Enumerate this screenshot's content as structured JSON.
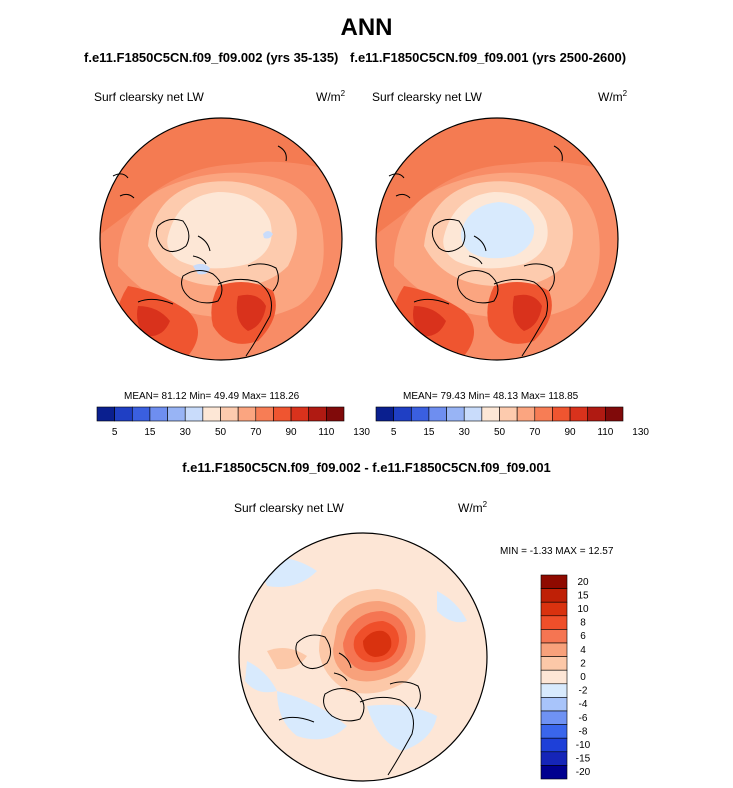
{
  "figure": {
    "title": "ANN",
    "diff_title": "f.e11.F1850C5CN.f09_f09.002 - f.e11.F1850C5CN.f09_f09.001"
  },
  "colors": {
    "abs_scale": [
      "#0a1f8f",
      "#1f3fc4",
      "#3a5fe0",
      "#6e8ef0",
      "#98b4f5",
      "#c9dcfb",
      "#fde7d6",
      "#fdcbae",
      "#fba580",
      "#f77d55",
      "#ef5530",
      "#d9321c",
      "#b01a12",
      "#800a0a"
    ],
    "diff_scale": [
      "#00008f",
      "#1525b8",
      "#1e40d8",
      "#3a66ec",
      "#6f92f3",
      "#a8c4fa",
      "#d8eafd",
      "#fde6d6",
      "#fcc8a8",
      "#f8a17b",
      "#f57552",
      "#ef4f2a",
      "#d9320f",
      "#bf2006",
      "#8f0a00"
    ]
  },
  "chart_data": [
    {
      "type": "heatmap",
      "projection": "north-polar-stereographic",
      "title": "f.e11.F1850C5CN.f09_f09.002 (yrs 35-135)",
      "label": "Surf clearsky net LW",
      "units": "W/m",
      "units_exp": "2",
      "mean": 81.12,
      "min": 49.49,
      "max": 118.26,
      "stats_text": "MEAN=  81.12  Min=  49.49  Max=  118.26",
      "colorbar_levels": [
        5,
        10,
        15,
        20,
        30,
        40,
        50,
        60,
        70,
        80,
        90,
        100,
        110,
        120,
        130
      ],
      "colorbar_ticks": [
        "5",
        "15",
        "30",
        "50",
        "70",
        "90",
        "110",
        "130"
      ]
    },
    {
      "type": "heatmap",
      "projection": "north-polar-stereographic",
      "title": "f.e11.F1850C5CN.f09_f09.001 (yrs 2500-2600)",
      "label": "Surf clearsky net LW",
      "units": "W/m",
      "units_exp": "2",
      "mean": 79.43,
      "min": 48.13,
      "max": 118.85,
      "stats_text": "MEAN=  79.43  Min=  48.13  Max=  118.85",
      "colorbar_levels": [
        5,
        10,
        15,
        20,
        30,
        40,
        50,
        60,
        70,
        80,
        90,
        100,
        110,
        120,
        130
      ],
      "colorbar_ticks": [
        "5",
        "15",
        "30",
        "50",
        "70",
        "90",
        "110",
        "130"
      ]
    },
    {
      "type": "heatmap",
      "projection": "north-polar-stereographic",
      "title": "f.e11.F1850C5CN.f09_f09.002 - f.e11.F1850C5CN.f09_f09.001",
      "label": "Surf clearsky net LW",
      "units": "W/m",
      "units_exp": "2",
      "min": -1.33,
      "max": 12.57,
      "stats_text": "MIN =  -1.33  MAX =  12.57",
      "colorbar_levels": [
        -20,
        -15,
        -10,
        -8,
        -6,
        -4,
        -2,
        0,
        2,
        4,
        6,
        8,
        10,
        15,
        20
      ],
      "colorbar_ticks": [
        "20",
        "15",
        "10",
        "8",
        "6",
        "4",
        "2",
        "0",
        "-2",
        "-4",
        "-6",
        "-8",
        "-10",
        "-15",
        "-20"
      ]
    }
  ]
}
